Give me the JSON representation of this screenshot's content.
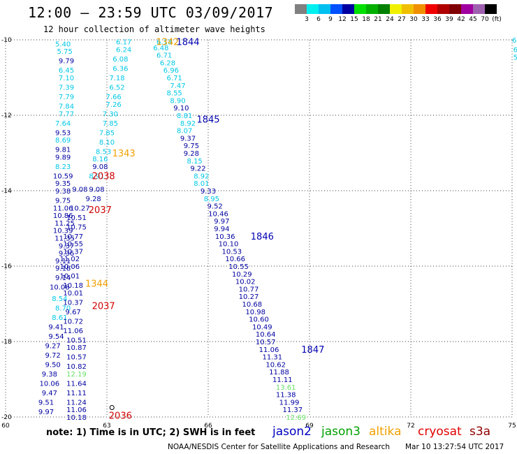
{
  "header": {
    "title": "12:00 — 23:59 UTC 03/09/2017",
    "subtitle": "12 hour collection of altimeter wave heights"
  },
  "colorbar": {
    "colors": [
      "#808080",
      "#00f0f0",
      "#00c0f0",
      "#0050ff",
      "#0000a0",
      "#00e000",
      "#00b000",
      "#008000",
      "#f0f000",
      "#f0c000",
      "#f09000",
      "#f00000",
      "#b00000",
      "#800000",
      "#a000a0",
      "#a060b0",
      "#000000"
    ],
    "labels": [
      "3",
      "6",
      "9",
      "12",
      "15",
      "18",
      "21",
      "24",
      "27",
      "30",
      "33",
      "36",
      "39",
      "42",
      "45",
      "70",
      "(ft)"
    ]
  },
  "map": {
    "lat_ticks": [
      "-10",
      "-12",
      "-14",
      "-16",
      "-18",
      "-20"
    ],
    "lon_ticks": [
      "60",
      "63",
      "66",
      "69",
      "72",
      "75"
    ]
  },
  "chart_data": {
    "type": "scatter",
    "xlabel": "",
    "ylabel": "",
    "xlim": [
      60,
      75
    ],
    "ylim": [
      -20,
      -10
    ],
    "points": [
      {
        "x": 61.7,
        "y": -10.1,
        "v": "5.40",
        "c": "#00c8e6"
      },
      {
        "x": 61.75,
        "y": -10.3,
        "v": "5.75",
        "c": "#00c8e6"
      },
      {
        "x": 61.8,
        "y": -10.55,
        "v": "9.79",
        "c": "#0000a0"
      },
      {
        "x": 61.8,
        "y": -10.8,
        "v": "6.45",
        "c": "#00c8e6"
      },
      {
        "x": 61.8,
        "y": -11.0,
        "v": "7.10",
        "c": "#00c8e6"
      },
      {
        "x": 61.8,
        "y": -11.25,
        "v": "7.39",
        "c": "#00c8e6"
      },
      {
        "x": 61.8,
        "y": -11.5,
        "v": "7.79",
        "c": "#00c8e6"
      },
      {
        "x": 61.8,
        "y": -11.75,
        "v": "7.84",
        "c": "#00c8e6"
      },
      {
        "x": 61.8,
        "y": -11.95,
        "v": "7.77",
        "c": "#00c8e6"
      },
      {
        "x": 61.7,
        "y": -12.2,
        "v": "7.64",
        "c": "#00c8e6"
      },
      {
        "x": 61.7,
        "y": -12.45,
        "v": "9.53",
        "c": "#0000a0"
      },
      {
        "x": 61.7,
        "y": -12.65,
        "v": "8.69",
        "c": "#00c8e6"
      },
      {
        "x": 61.7,
        "y": -12.9,
        "v": "9.81",
        "c": "#0000a0"
      },
      {
        "x": 61.7,
        "y": -13.1,
        "v": "9.89",
        "c": "#0000a0"
      },
      {
        "x": 61.7,
        "y": -13.35,
        "v": "8.23",
        "c": "#00c8e6"
      },
      {
        "x": 61.7,
        "y": -13.6,
        "v": "10.59",
        "c": "#0000a0"
      },
      {
        "x": 61.7,
        "y": -13.8,
        "v": "9.35",
        "c": "#0000a0"
      },
      {
        "x": 61.7,
        "y": -14.0,
        "v": "9.38",
        "c": "#0000a0"
      },
      {
        "x": 61.7,
        "y": -14.25,
        "v": "9.75",
        "c": "#0000a0"
      },
      {
        "x": 61.7,
        "y": -14.45,
        "v": "11.06",
        "c": "#0000a0"
      },
      {
        "x": 61.7,
        "y": -14.65,
        "v": "10.86",
        "c": "#0000a0"
      },
      {
        "x": 61.75,
        "y": -14.85,
        "v": "11.25",
        "c": "#0000a0"
      },
      {
        "x": 61.7,
        "y": -15.05,
        "v": "10.39",
        "c": "#0000a0"
      },
      {
        "x": 61.75,
        "y": -15.25,
        "v": "11.35",
        "c": "#0000a0"
      },
      {
        "x": 61.8,
        "y": -15.45,
        "v": "9.37",
        "c": "#0000a0"
      },
      {
        "x": 61.8,
        "y": -15.65,
        "v": "9.36",
        "c": "#0000a0"
      },
      {
        "x": 61.7,
        "y": -15.85,
        "v": "9.11",
        "c": "#0000a0"
      },
      {
        "x": 61.7,
        "y": -16.05,
        "v": "9.18",
        "c": "#0000a0"
      },
      {
        "x": 61.7,
        "y": -16.3,
        "v": "9.14",
        "c": "#0000a0"
      },
      {
        "x": 61.6,
        "y": -16.55,
        "v": "10.08",
        "c": "#0000a0"
      },
      {
        "x": 61.6,
        "y": -16.85,
        "v": "8.54",
        "c": "#00c8e6"
      },
      {
        "x": 61.7,
        "y": -17.1,
        "v": "8.70",
        "c": "#00c8e6"
      },
      {
        "x": 61.6,
        "y": -17.35,
        "v": "8.61",
        "c": "#00c8e6"
      },
      {
        "x": 61.5,
        "y": -17.6,
        "v": "9.41",
        "c": "#0000a0"
      },
      {
        "x": 61.5,
        "y": -17.85,
        "v": "9.54",
        "c": "#0000a0"
      },
      {
        "x": 61.4,
        "y": -18.1,
        "v": "9.27",
        "c": "#0000a0"
      },
      {
        "x": 61.4,
        "y": -18.35,
        "v": "9.72",
        "c": "#0000a0"
      },
      {
        "x": 61.4,
        "y": -18.6,
        "v": "9.50",
        "c": "#0000a0"
      },
      {
        "x": 61.3,
        "y": -18.85,
        "v": "9.38",
        "c": "#0000a0"
      },
      {
        "x": 61.3,
        "y": -19.1,
        "v": "10.06",
        "c": "#0000a0"
      },
      {
        "x": 61.3,
        "y": -19.35,
        "v": "9.47",
        "c": "#0000a0"
      },
      {
        "x": 61.2,
        "y": -19.6,
        "v": "9.51",
        "c": "#0000a0"
      },
      {
        "x": 61.2,
        "y": -19.85,
        "v": "9.97",
        "c": "#0000a0"
      },
      {
        "x": 62.2,
        "y": -13.95,
        "v": "9.08",
        "c": "#0000a0"
      },
      {
        "x": 62.2,
        "y": -14.45,
        "v": "10.27",
        "c": "#0000a0"
      },
      {
        "x": 62.1,
        "y": -14.7,
        "v": "10.51",
        "c": "#0000a0"
      },
      {
        "x": 62.1,
        "y": -14.95,
        "v": "10.75",
        "c": "#0000a0"
      },
      {
        "x": 62.0,
        "y": -15.2,
        "v": "10.77",
        "c": "#0000a0"
      },
      {
        "x": 62.0,
        "y": -15.4,
        "v": "10.55",
        "c": "#0000a0"
      },
      {
        "x": 62.0,
        "y": -15.6,
        "v": "10.37",
        "c": "#0000a0"
      },
      {
        "x": 61.9,
        "y": -15.8,
        "v": "11.02",
        "c": "#0000a0"
      },
      {
        "x": 61.9,
        "y": -16.0,
        "v": "10.06",
        "c": "#0000a0"
      },
      {
        "x": 61.9,
        "y": -16.25,
        "v": "10.01",
        "c": "#0000a0"
      },
      {
        "x": 62.0,
        "y": -16.5,
        "v": "10.18",
        "c": "#0000a0"
      },
      {
        "x": 62.0,
        "y": -16.7,
        "v": "10.01",
        "c": "#0000a0"
      },
      {
        "x": 62.0,
        "y": -16.95,
        "v": "10.37",
        "c": "#0000a0"
      },
      {
        "x": 62.0,
        "y": -17.2,
        "v": "9.67",
        "c": "#0000a0"
      },
      {
        "x": 62.0,
        "y": -17.45,
        "v": "10.72",
        "c": "#0000a0"
      },
      {
        "x": 62.0,
        "y": -17.7,
        "v": "11.06",
        "c": "#0000a0"
      },
      {
        "x": 62.1,
        "y": -17.95,
        "v": "10.51",
        "c": "#0000a0"
      },
      {
        "x": 62.1,
        "y": -18.15,
        "v": "10.87",
        "c": "#0000a0"
      },
      {
        "x": 62.1,
        "y": -18.4,
        "v": "10.57",
        "c": "#0000a0"
      },
      {
        "x": 62.1,
        "y": -18.65,
        "v": "10.82",
        "c": "#0000a0"
      },
      {
        "x": 62.1,
        "y": -18.85,
        "v": "12.19",
        "c": "#66e066"
      },
      {
        "x": 62.1,
        "y": -19.1,
        "v": "11.64",
        "c": "#0000a0"
      },
      {
        "x": 62.1,
        "y": -19.35,
        "v": "11.11",
        "c": "#0000a0"
      },
      {
        "x": 62.1,
        "y": -19.6,
        "v": "11.24",
        "c": "#0000a0"
      },
      {
        "x": 62.1,
        "y": -19.8,
        "v": "11.06",
        "c": "#0000a0"
      },
      {
        "x": 62.1,
        "y": -20.0,
        "v": "10.18",
        "c": "#0000a0"
      },
      {
        "x": 63.5,
        "y": -10.05,
        "v": "6.17",
        "c": "#00c8e6"
      },
      {
        "x": 63.5,
        "y": -10.25,
        "v": "6.24",
        "c": "#00c8e6"
      },
      {
        "x": 63.4,
        "y": -10.5,
        "v": "6.08",
        "c": "#00c8e6"
      },
      {
        "x": 63.4,
        "y": -10.75,
        "v": "6.36",
        "c": "#00c8e6"
      },
      {
        "x": 63.3,
        "y": -11.0,
        "v": "7.18",
        "c": "#00c8e6"
      },
      {
        "x": 63.3,
        "y": -11.25,
        "v": "6.52",
        "c": "#00c8e6"
      },
      {
        "x": 63.2,
        "y": -11.5,
        "v": "7.66",
        "c": "#00c8e6"
      },
      {
        "x": 63.2,
        "y": -11.7,
        "v": "7.26",
        "c": "#00c8e6"
      },
      {
        "x": 63.1,
        "y": -11.95,
        "v": "7.30",
        "c": "#00c8e6"
      },
      {
        "x": 63.1,
        "y": -12.2,
        "v": "7.85",
        "c": "#00c8e6"
      },
      {
        "x": 63.0,
        "y": -12.45,
        "v": "7.85",
        "c": "#00c8e6"
      },
      {
        "x": 63.0,
        "y": -12.7,
        "v": "8.10",
        "c": "#00c8e6"
      },
      {
        "x": 62.9,
        "y": -12.95,
        "v": "8.53",
        "c": "#00c8e6"
      },
      {
        "x": 62.8,
        "y": -13.15,
        "v": "8.16",
        "c": "#00c8e6"
      },
      {
        "x": 62.8,
        "y": -13.35,
        "v": "9.08",
        "c": "#0000a0"
      },
      {
        "x": 62.7,
        "y": -13.6,
        "v": "8.91",
        "c": "#00c8e6"
      },
      {
        "x": 62.7,
        "y": -13.95,
        "v": "9.08",
        "c": "#0000a0"
      },
      {
        "x": 62.6,
        "y": -14.2,
        "v": "9.28",
        "c": "#0000a0"
      },
      {
        "x": 64.7,
        "y": -10.05,
        "v": "6.13",
        "c": "#00c8e6"
      },
      {
        "x": 64.6,
        "y": -10.2,
        "v": "6.48",
        "c": "#00c8e6"
      },
      {
        "x": 64.7,
        "y": -10.4,
        "v": "6.71",
        "c": "#00c8e6"
      },
      {
        "x": 64.8,
        "y": -10.6,
        "v": "6.28",
        "c": "#00c8e6"
      },
      {
        "x": 64.9,
        "y": -10.8,
        "v": "6.96",
        "c": "#00c8e6"
      },
      {
        "x": 65.0,
        "y": -11.0,
        "v": "6.71",
        "c": "#00c8e6"
      },
      {
        "x": 65.1,
        "y": -11.2,
        "v": "7.47",
        "c": "#00c8e6"
      },
      {
        "x": 65.0,
        "y": -11.4,
        "v": "8.55",
        "c": "#00c8e6"
      },
      {
        "x": 65.1,
        "y": -11.6,
        "v": "8.90",
        "c": "#00c8e6"
      },
      {
        "x": 65.2,
        "y": -11.8,
        "v": "9.10",
        "c": "#0000a0"
      },
      {
        "x": 65.3,
        "y": -12.0,
        "v": "8.81",
        "c": "#00c8e6"
      },
      {
        "x": 65.4,
        "y": -12.2,
        "v": "8.92",
        "c": "#00c8e6"
      },
      {
        "x": 65.3,
        "y": -12.4,
        "v": "8.07",
        "c": "#00c8e6"
      },
      {
        "x": 65.4,
        "y": -12.6,
        "v": "9.37",
        "c": "#0000a0"
      },
      {
        "x": 65.5,
        "y": -12.8,
        "v": "9.75",
        "c": "#0000a0"
      },
      {
        "x": 65.5,
        "y": -13.0,
        "v": "9.28",
        "c": "#0000a0"
      },
      {
        "x": 65.6,
        "y": -13.2,
        "v": "8.15",
        "c": "#00c8e6"
      },
      {
        "x": 65.7,
        "y": -13.4,
        "v": "9.22",
        "c": "#0000a0"
      },
      {
        "x": 65.8,
        "y": -13.6,
        "v": "8.92",
        "c": "#00c8e6"
      },
      {
        "x": 65.8,
        "y": -13.8,
        "v": "8.01",
        "c": "#00c8e6"
      },
      {
        "x": 66.0,
        "y": -14.0,
        "v": "9.33",
        "c": "#0000a0"
      },
      {
        "x": 66.1,
        "y": -14.2,
        "v": "8.95",
        "c": "#00c8e6"
      },
      {
        "x": 66.2,
        "y": -14.4,
        "v": "9.52",
        "c": "#0000a0"
      },
      {
        "x": 66.3,
        "y": -14.6,
        "v": "10.46",
        "c": "#0000a0"
      },
      {
        "x": 66.4,
        "y": -14.8,
        "v": "9.97",
        "c": "#0000a0"
      },
      {
        "x": 66.4,
        "y": -15.0,
        "v": "9.94",
        "c": "#0000a0"
      },
      {
        "x": 66.5,
        "y": -15.2,
        "v": "10.36",
        "c": "#0000a0"
      },
      {
        "x": 66.6,
        "y": -15.4,
        "v": "10.10",
        "c": "#0000a0"
      },
      {
        "x": 66.7,
        "y": -15.6,
        "v": "10.53",
        "c": "#0000a0"
      },
      {
        "x": 66.8,
        "y": -15.8,
        "v": "10.66",
        "c": "#0000a0"
      },
      {
        "x": 66.9,
        "y": -16.0,
        "v": "10.55",
        "c": "#0000a0"
      },
      {
        "x": 67.0,
        "y": -16.2,
        "v": "10.29",
        "c": "#0000a0"
      },
      {
        "x": 67.1,
        "y": -16.4,
        "v": "10.02",
        "c": "#0000a0"
      },
      {
        "x": 67.2,
        "y": -16.6,
        "v": "10.77",
        "c": "#0000a0"
      },
      {
        "x": 67.2,
        "y": -16.8,
        "v": "10.27",
        "c": "#0000a0"
      },
      {
        "x": 67.3,
        "y": -17.0,
        "v": "10.68",
        "c": "#0000a0"
      },
      {
        "x": 67.4,
        "y": -17.2,
        "v": "10.98",
        "c": "#0000a0"
      },
      {
        "x": 67.5,
        "y": -17.4,
        "v": "10.60",
        "c": "#0000a0"
      },
      {
        "x": 67.6,
        "y": -17.6,
        "v": "10.49",
        "c": "#0000a0"
      },
      {
        "x": 67.7,
        "y": -17.8,
        "v": "10.64",
        "c": "#0000a0"
      },
      {
        "x": 67.7,
        "y": -18.0,
        "v": "10.57",
        "c": "#0000a0"
      },
      {
        "x": 67.8,
        "y": -18.2,
        "v": "11.06",
        "c": "#0000a0"
      },
      {
        "x": 67.9,
        "y": -18.4,
        "v": "11.31",
        "c": "#0000a0"
      },
      {
        "x": 68.0,
        "y": -18.6,
        "v": "10.62",
        "c": "#0000a0"
      },
      {
        "x": 68.1,
        "y": -18.8,
        "v": "11.88",
        "c": "#0000a0"
      },
      {
        "x": 68.2,
        "y": -19.0,
        "v": "11.11",
        "c": "#0000a0"
      },
      {
        "x": 68.3,
        "y": -19.2,
        "v": "13.61",
        "c": "#66e066"
      },
      {
        "x": 68.3,
        "y": -19.4,
        "v": "11.38",
        "c": "#0000a0"
      },
      {
        "x": 68.4,
        "y": -19.6,
        "v": "11.99",
        "c": "#0000a0"
      },
      {
        "x": 68.5,
        "y": -19.8,
        "v": "11.37",
        "c": "#0000a0"
      },
      {
        "x": 68.6,
        "y": -20.0,
        "v": "12.69",
        "c": "#66e066"
      },
      {
        "x": 75.1,
        "y": -10.0,
        "v": "6.",
        "c": "#00c8e6"
      },
      {
        "x": 75.1,
        "y": -10.25,
        "v": "6",
        "c": "#00c8e6"
      },
      {
        "x": 75.1,
        "y": -10.45,
        "v": "5",
        "c": "#00c8e6"
      }
    ],
    "pass_labels": [
      {
        "x": 64.8,
        "y": -10.05,
        "t": "1342",
        "c": "#f0a000"
      },
      {
        "x": 65.4,
        "y": -10.05,
        "t": "1844",
        "c": "#0000b0"
      },
      {
        "x": 66.0,
        "y": -12.1,
        "t": "1845",
        "c": "#0000b0"
      },
      {
        "x": 63.5,
        "y": -13.0,
        "t": "1343",
        "c": "#f0a000"
      },
      {
        "x": 62.9,
        "y": -13.6,
        "t": "2038",
        "c": "#d00000"
      },
      {
        "x": 62.8,
        "y": -14.5,
        "t": "2037",
        "c": "#d00000"
      },
      {
        "x": 67.6,
        "y": -15.2,
        "t": "1846",
        "c": "#0000b0"
      },
      {
        "x": 62.7,
        "y": -16.45,
        "t": "1344",
        "c": "#f0a000"
      },
      {
        "x": 62.9,
        "y": -17.05,
        "t": "2037",
        "c": "#d00000"
      },
      {
        "x": 69.1,
        "y": -18.2,
        "t": "1847",
        "c": "#0000b0"
      },
      {
        "x": 63.4,
        "y": -19.95,
        "t": "2036",
        "c": "#d00000"
      }
    ]
  },
  "footer": {
    "note": "note:  1) Time is in UTC;  2) SWH is in feet",
    "legend": [
      {
        "label": "jason2",
        "color": "#0000c0"
      },
      {
        "label": "jason3",
        "color": "#00a000"
      },
      {
        "label": "altika",
        "color": "#f0a000"
      },
      {
        "label": "cryosat",
        "color": "#e00000"
      },
      {
        "label": "s3a",
        "color": "#900000"
      }
    ],
    "credit": "NOAA/NESDIS Center for Satellite Applications and Research",
    "timestamp": "Mar 10 13:27:54 UTC 2017"
  }
}
